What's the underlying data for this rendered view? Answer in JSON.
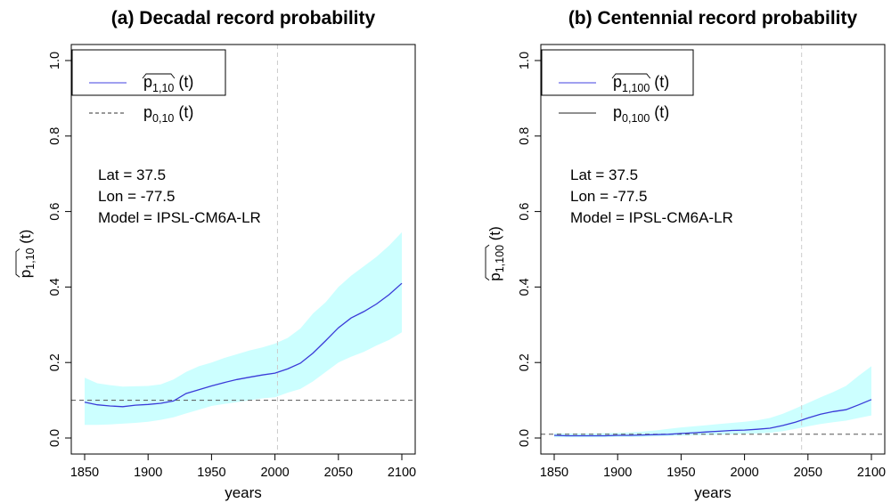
{
  "chart_data": [
    {
      "type": "line",
      "title": "(a) Decadal record probability",
      "xlabel": "years",
      "ylabel": {
        "base": "p",
        "subscript": "1,10",
        "suffix": " (t)",
        "hat": true
      },
      "xlim": [
        1850,
        2100
      ],
      "ylim": [
        0,
        1
      ],
      "xticks": [
        "1850",
        "1900",
        "1950",
        "2000",
        "2050",
        "2100"
      ],
      "yticks": [
        "0.0",
        "0.2",
        "0.4",
        "0.6",
        "0.8",
        "1.0"
      ],
      "grid": false,
      "vline_x": 2002,
      "hline_y": 0.1,
      "info": [
        "Lat = 37.5",
        "Lon = -77.5",
        "Model = IPSL-CM6A-LR"
      ],
      "legend": {
        "placement": "top-left",
        "entries": [
          {
            "base": "p",
            "subscript": "1,10",
            "suffix": " (t)",
            "hat": true,
            "style": "solid",
            "color": "#4040e0"
          },
          {
            "base": "p",
            "subscript": "0,10",
            "suffix": " (t)",
            "hat": false,
            "style": "dashed",
            "color": "#333333"
          }
        ]
      },
      "colors": {
        "estimate": "#3a3ad8",
        "band": "#ccffff",
        "reference": "#555555",
        "vline": "#cccccc"
      },
      "x": [
        1850,
        1860,
        1870,
        1880,
        1890,
        1900,
        1910,
        1920,
        1930,
        1940,
        1950,
        1960,
        1970,
        1980,
        1990,
        2000,
        2010,
        2020,
        2030,
        2040,
        2050,
        2060,
        2070,
        2080,
        2090,
        2100
      ],
      "series": [
        {
          "values": [
            0.095,
            0.088,
            0.085,
            0.083,
            0.087,
            0.089,
            0.092,
            0.098,
            0.118,
            0.128,
            0.138,
            0.147,
            0.155,
            0.161,
            0.167,
            0.172,
            0.183,
            0.198,
            0.225,
            0.258,
            0.292,
            0.318,
            0.335,
            0.355,
            0.38,
            0.41
          ]
        }
      ],
      "band": {
        "lower": [
          0.035,
          0.035,
          0.036,
          0.038,
          0.04,
          0.043,
          0.048,
          0.055,
          0.065,
          0.075,
          0.085,
          0.09,
          0.095,
          0.1,
          0.105,
          0.108,
          0.12,
          0.13,
          0.15,
          0.175,
          0.2,
          0.215,
          0.228,
          0.245,
          0.26,
          0.28
        ],
        "upper": [
          0.16,
          0.145,
          0.14,
          0.136,
          0.137,
          0.138,
          0.142,
          0.155,
          0.175,
          0.19,
          0.2,
          0.212,
          0.222,
          0.232,
          0.24,
          0.25,
          0.265,
          0.29,
          0.33,
          0.36,
          0.4,
          0.43,
          0.455,
          0.48,
          0.51,
          0.545
        ]
      }
    },
    {
      "type": "line",
      "title": "(b) Centennial record probability",
      "xlabel": "years",
      "ylabel": {
        "base": "p",
        "subscript": "1,100",
        "suffix": " (t)",
        "hat": true
      },
      "xlim": [
        1850,
        2100
      ],
      "ylim": [
        0,
        1
      ],
      "xticks": [
        "1850",
        "1900",
        "1950",
        "2000",
        "2050",
        "2100"
      ],
      "yticks": [
        "0.0",
        "0.2",
        "0.4",
        "0.6",
        "0.8",
        "1.0"
      ],
      "grid": false,
      "vline_x": 2045,
      "hline_y": 0.01,
      "info": [
        "Lat = 37.5",
        "Lon = -77.5",
        "Model = IPSL-CM6A-LR"
      ],
      "legend": {
        "placement": "top-left",
        "entries": [
          {
            "base": "p",
            "subscript": "1,100",
            "suffix": " (t)",
            "hat": true,
            "style": "solid",
            "color": "#4040e0"
          },
          {
            "base": "p",
            "subscript": "0,100",
            "suffix": " (t)",
            "hat": false,
            "style": "solid",
            "color": "#222222"
          }
        ]
      },
      "colors": {
        "estimate": "#3a3ad8",
        "band": "#ccffff",
        "reference": "#555555",
        "vline": "#cccccc"
      },
      "x": [
        1850,
        1860,
        1870,
        1880,
        1890,
        1900,
        1910,
        1920,
        1930,
        1940,
        1950,
        1960,
        1970,
        1980,
        1990,
        2000,
        2010,
        2020,
        2030,
        2040,
        2050,
        2060,
        2070,
        2080,
        2090,
        2100
      ],
      "series": [
        {
          "values": [
            0.007,
            0.006,
            0.006,
            0.006,
            0.006,
            0.007,
            0.007,
            0.008,
            0.009,
            0.01,
            0.012,
            0.014,
            0.016,
            0.018,
            0.02,
            0.021,
            0.023,
            0.026,
            0.033,
            0.042,
            0.053,
            0.063,
            0.07,
            0.075,
            0.088,
            0.102
          ]
        }
      ],
      "band": {
        "lower": [
          0.002,
          0.002,
          0.002,
          0.002,
          0.002,
          0.003,
          0.003,
          0.003,
          0.004,
          0.005,
          0.006,
          0.007,
          0.008,
          0.009,
          0.01,
          0.011,
          0.012,
          0.014,
          0.018,
          0.024,
          0.031,
          0.037,
          0.042,
          0.046,
          0.053,
          0.06
        ],
        "upper": [
          0.013,
          0.012,
          0.012,
          0.012,
          0.013,
          0.014,
          0.015,
          0.017,
          0.02,
          0.024,
          0.028,
          0.031,
          0.034,
          0.037,
          0.04,
          0.043,
          0.047,
          0.053,
          0.064,
          0.078,
          0.093,
          0.108,
          0.122,
          0.138,
          0.165,
          0.19
        ]
      }
    }
  ]
}
